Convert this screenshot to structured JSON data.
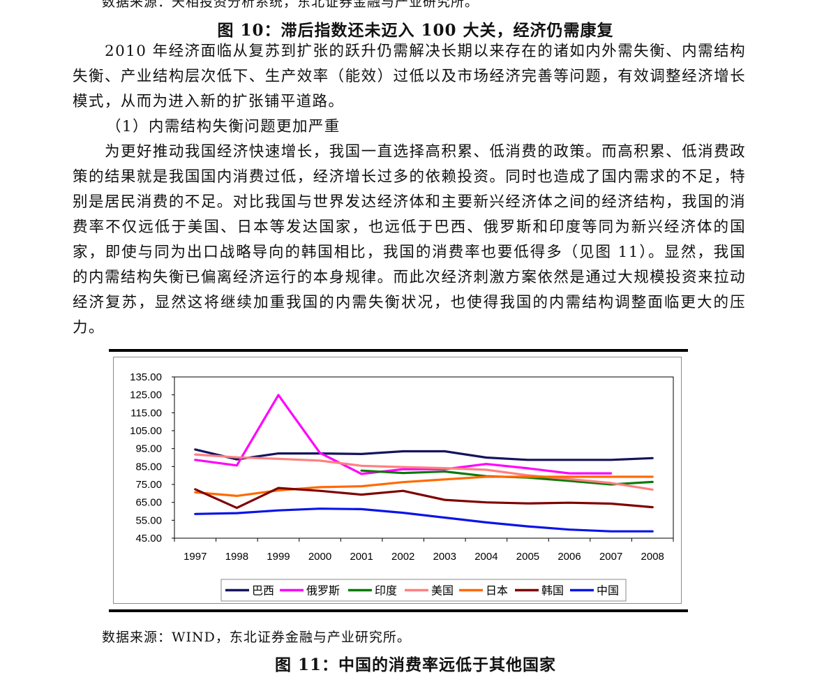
{
  "page": {
    "source_top": "数据来源：天相投资分析系统，东北证券金融与产业研究所。",
    "figure_title": "图 10：滞后指数还未迈入 100 大关，经济仍需康复",
    "paragraph1": "2010 年经济面临从复苏到扩张的跃升仍需解决长期以来存在的诸如内外需失衡、内需结构失衡、产业结构层次低下、生产效率（能效）过低以及市场经济完善等问题，有效调整经济增长模式，从而为进入新的扩张铺平道路。",
    "heading": "（1）内需结构失衡问题更加严重",
    "paragraph2": "为更好推动我国经济快速增长，我国一直选择高积累、低消费的政策。而高积累、低消费政策的结果就是我国国内消费过低，经济增长过多的依赖投资。同时也造成了国内需求的不足，特别是居民消费的不足。对比我国与世界发达经济体和主要新兴经济体之间的经济结构，我国的消费率不仅远低于美国、日本等发达国家，也远低于巴西、俄罗斯和印度等同为新兴经济体的国家，即使与同为出口战略导向的韩国相比，我国的消费率也要低得多（见图 11）。显然，我国的内需结构失衡已偏离经济运行的本身规律。而此次经济刺激方案依然是通过大规模投资来拉动经济复苏，显然这将继续加重我国的内需失衡状况，也使得我国的内需结构调整面临更大的压力。",
    "source_bottom": "数据来源：WIND，东北证券金融与产业研究所。",
    "next_figure_title": "图 11：中国的消费率远低于其他国家"
  },
  "chart_data": {
    "type": "line",
    "x": [
      "1997",
      "1998",
      "1999",
      "2000",
      "2001",
      "2002",
      "2003",
      "2004",
      "2005",
      "2006",
      "2007",
      "2008"
    ],
    "ylim": [
      45,
      135
    ],
    "yticks": [
      "135.00",
      "125.00",
      "115.00",
      "105.00",
      "95.00",
      "85.00",
      "75.00",
      "65.00",
      "55.00",
      "45.00"
    ],
    "grid": false,
    "legend_position": "bottom",
    "series": [
      {
        "name": "巴西",
        "color": "#14145f",
        "values": [
          94.5,
          89,
          92.3,
          92.3,
          92,
          93.5,
          93.5,
          90,
          88.7,
          88.7,
          88.7,
          89.7
        ]
      },
      {
        "name": "俄罗斯",
        "color": "#ff00ff",
        "values": [
          88.7,
          85.6,
          124.9,
          92.6,
          80.9,
          83.5,
          83.5,
          86.4,
          84,
          81.2,
          81.2,
          null
        ]
      },
      {
        "name": "印度",
        "color": "#0a7a0a",
        "values": [
          null,
          null,
          null,
          null,
          82.7,
          81.4,
          82.2,
          79.6,
          78.8,
          77,
          75,
          76.4
        ]
      },
      {
        "name": "美国",
        "color": "#ff8080",
        "values": [
          91.7,
          90.1,
          89.3,
          88.3,
          85.4,
          84.7,
          84.1,
          83.2,
          80.1,
          78,
          75.8,
          72.1
        ]
      },
      {
        "name": "日本",
        "color": "#ff6a00",
        "values": [
          70.6,
          68.6,
          71.7,
          73.5,
          74,
          76.3,
          77.8,
          79.3,
          79.3,
          79.3,
          79.3,
          79.3
        ]
      },
      {
        "name": "韩国",
        "color": "#7f0000",
        "values": [
          72.3,
          61.9,
          73,
          71.4,
          69.3,
          71.4,
          66.4,
          65,
          64.4,
          64.8,
          64.3,
          62.3
        ]
      },
      {
        "name": "中国",
        "color": "#0a14e6",
        "values": [
          58.5,
          59,
          60.5,
          61.5,
          61.2,
          59.2,
          56.5,
          53.8,
          51.6,
          49.8,
          48.8,
          48.8
        ]
      }
    ]
  }
}
